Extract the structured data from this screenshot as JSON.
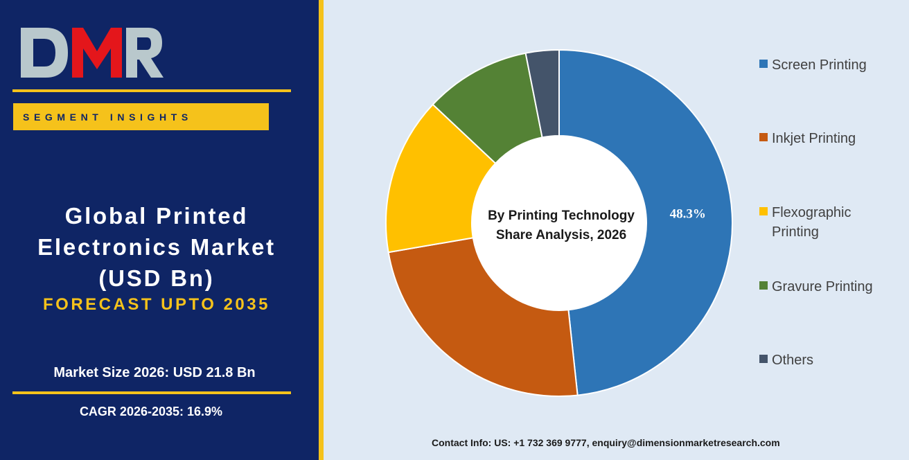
{
  "brand": {
    "logo_text": "DMR"
  },
  "left_panel": {
    "segment_label": "SEGMENT INSIGHTS",
    "title_lines": [
      "Global Printed",
      "Electronics Market",
      "(USD Bn)"
    ],
    "forecast": "FORECAST UPTO 2035",
    "market_size": "Market Size 2026: USD 21.8 Bn",
    "cagr": "CAGR 2026-2035: 16.9%"
  },
  "footer": {
    "contact": "Contact Info: US: +1 732 369 9777, enquiry@dimensionmarketresearch.com"
  },
  "colors": {
    "panel_bg": "#0f2565",
    "accent_gold": "#f5c21b",
    "chart_bg": "#dfe9f4"
  },
  "chart_data": {
    "type": "pie",
    "donut": true,
    "center_text": [
      "By Printing Technology",
      "Share Analysis, 2026"
    ],
    "legend_position": "right",
    "categories": [
      "Screen Printing",
      "Inkjet Printing",
      "Flexographic Printing",
      "Gravure Printing",
      "Others"
    ],
    "values": [
      48.3,
      24.0,
      14.7,
      9.9,
      3.1
    ],
    "unit": "%",
    "colors": [
      "#2e75b6",
      "#c55a11",
      "#ffc000",
      "#548235",
      "#44546a"
    ],
    "data_labels": [
      "48.3%",
      "",
      "",
      "",
      ""
    ],
    "legend_labels": [
      [
        "Screen Printing"
      ],
      [
        "Inkjet Printing"
      ],
      [
        "Flexographic",
        "Printing"
      ],
      [
        "Gravure Printing"
      ],
      [
        "Others"
      ]
    ]
  }
}
